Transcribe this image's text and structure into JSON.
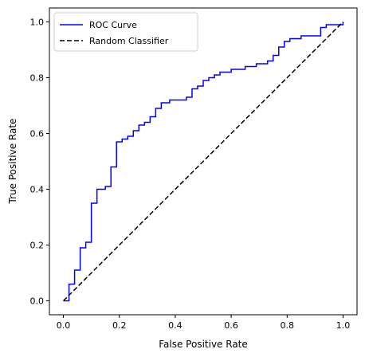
{
  "chart_data": {
    "type": "line",
    "title": "",
    "xlabel": "False Positive Rate",
    "ylabel": "True Positive Rate",
    "xlim": [
      -0.05,
      1.05
    ],
    "ylim": [
      -0.05,
      1.05
    ],
    "grid": false,
    "legend_position": "top-left",
    "x_ticks": [
      {
        "value": 0.0,
        "label": "0.0"
      },
      {
        "value": 0.2,
        "label": "0.2"
      },
      {
        "value": 0.4,
        "label": "0.4"
      },
      {
        "value": 0.6,
        "label": "0.6"
      },
      {
        "value": 0.8,
        "label": "0.8"
      },
      {
        "value": 1.0,
        "label": "1.0"
      }
    ],
    "y_ticks": [
      {
        "value": 0.0,
        "label": "0.0"
      },
      {
        "value": 0.2,
        "label": "0.2"
      },
      {
        "value": 0.4,
        "label": "0.4"
      },
      {
        "value": 0.6,
        "label": "0.6"
      },
      {
        "value": 0.8,
        "label": "0.8"
      },
      {
        "value": 1.0,
        "label": "1.0"
      }
    ],
    "series": [
      {
        "name": "ROC Curve",
        "color": "#0000ff",
        "style": "solid",
        "step": true,
        "x": [
          0.0,
          0.02,
          0.02,
          0.04,
          0.04,
          0.06,
          0.06,
          0.08,
          0.08,
          0.1,
          0.1,
          0.12,
          0.12,
          0.15,
          0.15,
          0.17,
          0.17,
          0.19,
          0.19,
          0.21,
          0.21,
          0.23,
          0.23,
          0.25,
          0.25,
          0.27,
          0.27,
          0.29,
          0.29,
          0.31,
          0.31,
          0.33,
          0.33,
          0.35,
          0.35,
          0.38,
          0.38,
          0.42,
          0.42,
          0.44,
          0.44,
          0.46,
          0.46,
          0.48,
          0.48,
          0.5,
          0.5,
          0.52,
          0.52,
          0.54,
          0.54,
          0.56,
          0.56,
          0.58,
          0.58,
          0.6,
          0.6,
          0.62,
          0.62,
          0.65,
          0.65,
          0.69,
          0.69,
          0.73,
          0.73,
          0.75,
          0.75,
          0.77,
          0.77,
          0.79,
          0.79,
          0.81,
          0.81,
          0.83,
          0.83,
          0.85,
          0.85,
          0.88,
          0.88,
          0.92,
          0.92,
          0.94,
          0.94,
          0.98,
          0.98,
          1.0,
          1.0
        ],
        "y": [
          0.0,
          0.0,
          0.06,
          0.06,
          0.11,
          0.11,
          0.19,
          0.19,
          0.21,
          0.21,
          0.35,
          0.35,
          0.4,
          0.4,
          0.41,
          0.41,
          0.48,
          0.48,
          0.57,
          0.57,
          0.58,
          0.58,
          0.59,
          0.59,
          0.61,
          0.61,
          0.63,
          0.63,
          0.64,
          0.64,
          0.66,
          0.66,
          0.69,
          0.69,
          0.71,
          0.71,
          0.72,
          0.72,
          0.72,
          0.72,
          0.73,
          0.73,
          0.76,
          0.76,
          0.77,
          0.77,
          0.79,
          0.79,
          0.8,
          0.8,
          0.81,
          0.81,
          0.82,
          0.82,
          0.82,
          0.82,
          0.83,
          0.83,
          0.83,
          0.83,
          0.84,
          0.84,
          0.85,
          0.85,
          0.86,
          0.86,
          0.88,
          0.88,
          0.91,
          0.91,
          0.93,
          0.93,
          0.94,
          0.94,
          0.94,
          0.94,
          0.95,
          0.95,
          0.95,
          0.95,
          0.98,
          0.98,
          0.99,
          0.99,
          0.99,
          0.99,
          1.0
        ]
      },
      {
        "name": "Random Classifier",
        "color": "#000000",
        "style": "dashed",
        "step": false,
        "x": [
          0.0,
          1.0
        ],
        "y": [
          0.0,
          1.0
        ]
      }
    ]
  }
}
